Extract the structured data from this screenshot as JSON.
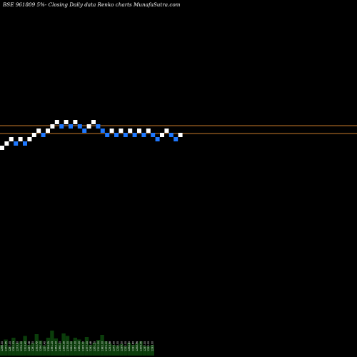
{
  "title": "BSE 961809 5%-  Closing Daily data  Renko  charts MunafaSutra.com",
  "colors": {
    "background": "#000000",
    "up_brick": "#ffffff",
    "down_brick": "#1e78ff",
    "reference_line": "#c87a2a",
    "volume": "#0b3d0b",
    "volume_label": "#ffffff"
  },
  "chart_data": {
    "type": "renko",
    "title": "BSE 961809 5%-  Closing Daily data  Renko  charts MunafaSutra.com",
    "brick_size_note": "5%",
    "bricks": [
      {
        "dir": "up",
        "level": 0
      },
      {
        "dir": "up",
        "level": 1
      },
      {
        "dir": "up",
        "level": 2
      },
      {
        "dir": "down",
        "level": 1
      },
      {
        "dir": "up",
        "level": 2
      },
      {
        "dir": "down",
        "level": 1
      },
      {
        "dir": "up",
        "level": 2
      },
      {
        "dir": "up",
        "level": 3
      },
      {
        "dir": "up",
        "level": 4
      },
      {
        "dir": "down",
        "level": 3
      },
      {
        "dir": "up",
        "level": 4
      },
      {
        "dir": "up",
        "level": 5
      },
      {
        "dir": "up",
        "level": 6
      },
      {
        "dir": "down",
        "level": 5
      },
      {
        "dir": "up",
        "level": 6
      },
      {
        "dir": "down",
        "level": 5
      },
      {
        "dir": "up",
        "level": 6
      },
      {
        "dir": "down",
        "level": 5
      },
      {
        "dir": "down",
        "level": 4
      },
      {
        "dir": "up",
        "level": 5
      },
      {
        "dir": "up",
        "level": 6
      },
      {
        "dir": "down",
        "level": 5
      },
      {
        "dir": "down",
        "level": 4
      },
      {
        "dir": "down",
        "level": 3
      },
      {
        "dir": "up",
        "level": 4
      },
      {
        "dir": "down",
        "level": 3
      },
      {
        "dir": "up",
        "level": 4
      },
      {
        "dir": "down",
        "level": 3
      },
      {
        "dir": "up",
        "level": 4
      },
      {
        "dir": "down",
        "level": 3
      },
      {
        "dir": "up",
        "level": 4
      },
      {
        "dir": "down",
        "level": 3
      },
      {
        "dir": "up",
        "level": 4
      },
      {
        "dir": "down",
        "level": 3
      },
      {
        "dir": "down",
        "level": 2
      },
      {
        "dir": "up",
        "level": 3
      },
      {
        "dir": "up",
        "level": 4
      },
      {
        "dir": "down",
        "level": 3
      },
      {
        "dir": "down",
        "level": 2
      },
      {
        "dir": "up",
        "level": 3
      }
    ],
    "reference_lines": [
      5,
      3
    ],
    "volume_labels": [
      "1298.00",
      "1370.95",
      "1287.00",
      "1251.53",
      "1273.60",
      "1274.00",
      "1313.40",
      "1287.08",
      "1281.00",
      "1322.45",
      "1290.00",
      "1257.40",
      "1326.25",
      "1391.15",
      "1364.00",
      "1360.00",
      "1369.35",
      "1378.00",
      "1260.00",
      "1357.00",
      "1380.00",
      "1329.00",
      "1377.00",
      "1242.48",
      "1261.50",
      "1311.00",
      "1382.00",
      "1375.00",
      "1253.98",
      "1270.00",
      "1224.00",
      "1239.50",
      "1222.00",
      "1264.80",
      "1231.80",
      "1263.96",
      "1306.05",
      "1237.00",
      "1229.00",
      "1233.00"
    ],
    "volumes": [
      0.3,
      0.45,
      0.25,
      0.5,
      0.35,
      0.4,
      0.55,
      0.3,
      0.35,
      0.6,
      0.42,
      0.28,
      0.5,
      0.7,
      0.48,
      0.35,
      0.62,
      0.55,
      0.4,
      0.5,
      0.45,
      0.38,
      0.52,
      0.3,
      0.36,
      0.44,
      0.58,
      0.4,
      0.34,
      0.3,
      0.28,
      0.32,
      0.26,
      0.36,
      0.3,
      0.34,
      0.4,
      0.28,
      0.26,
      0.3
    ]
  }
}
